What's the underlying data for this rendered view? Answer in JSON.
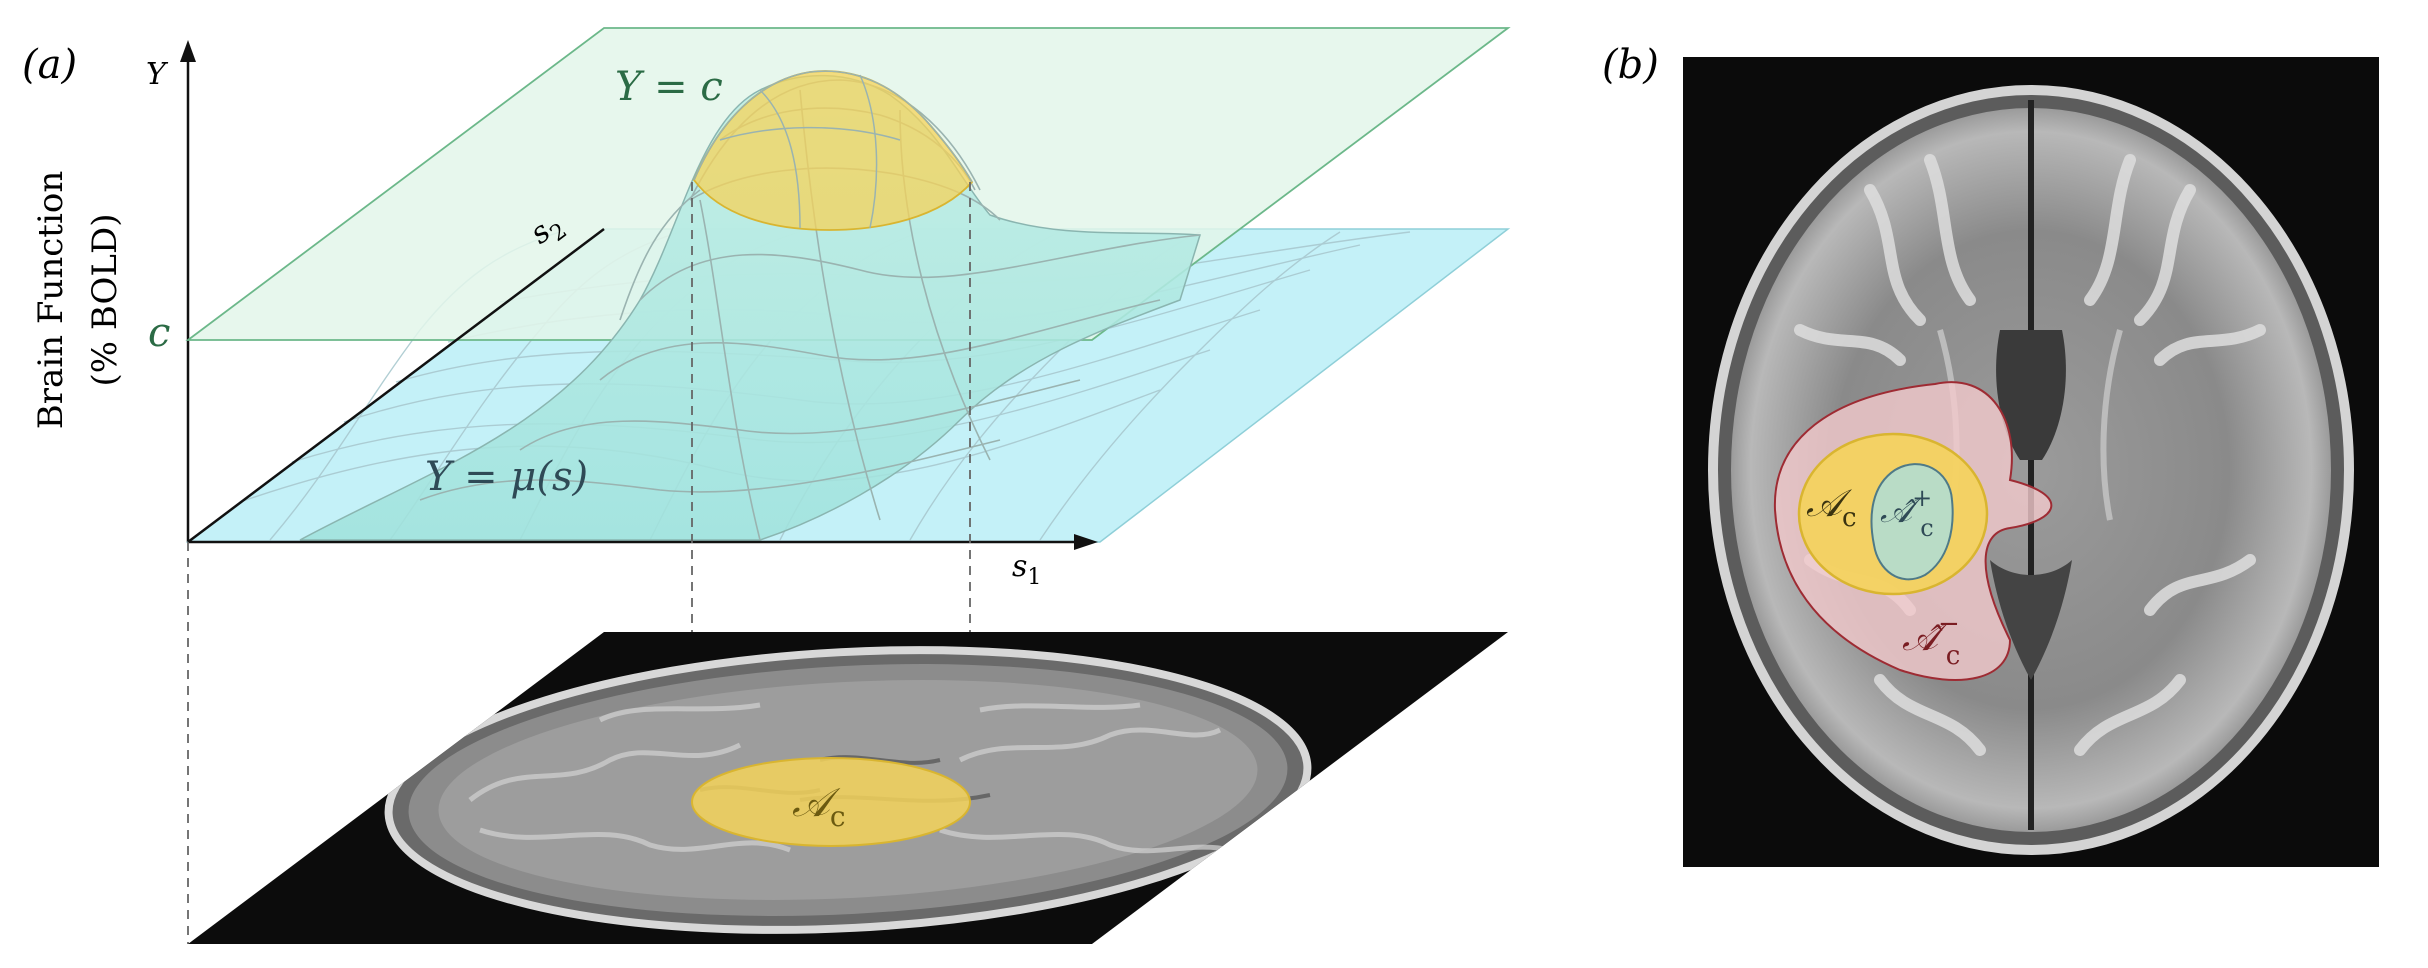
{
  "panel_a": {
    "label": "(a)",
    "y_axis_letter": "Y",
    "y_axis_title_line1": "Brain Function",
    "y_axis_title_line2": "(% BOLD)",
    "threshold_tick": "c",
    "plane_label": "Y = c",
    "surface_label": "Y = μ(s)",
    "s1_label": "s",
    "s1_sub": "1",
    "s2_label": "s",
    "s2_sub": "2",
    "region_label": "𝒜",
    "region_sub": "c"
  },
  "panel_b": {
    "label": "(b)",
    "inner_label": "𝒜̂",
    "inner_sup": "+",
    "inner_sub": "c",
    "middle_label": "𝒜",
    "middle_sub": "c",
    "outer_label": "𝒜̂",
    "outer_sup": "−",
    "outer_sub": "c"
  },
  "colors": {
    "plane_green": "#e3f6ea",
    "plane_green_edge": "#6cb88a",
    "floor_cyan": "#c4f1f8",
    "gold": "#f5d35a",
    "gold_edge": "#d9b530",
    "outer_red": "#f2c9cc",
    "outer_red_edge": "#9e2b33",
    "inner_teal": "#b9dcc6",
    "text_green": "#2b6b45",
    "text_dark": "#2f4a56",
    "text_red": "#7a1d22"
  }
}
